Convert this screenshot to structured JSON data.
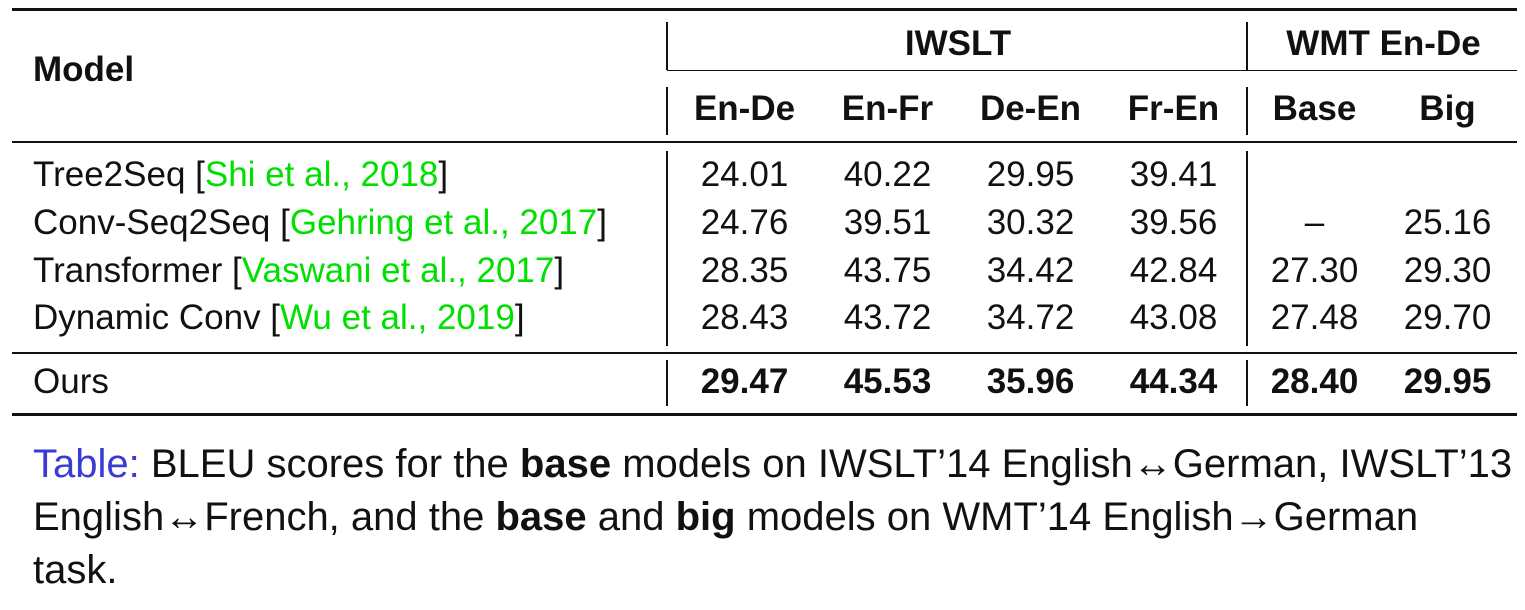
{
  "table": {
    "model_header": "Model",
    "groups": [
      {
        "label": "IWSLT"
      },
      {
        "label": "WMT En-De"
      }
    ],
    "columns": [
      "En-De",
      "En-Fr",
      "De-En",
      "Fr-En",
      "Base",
      "Big"
    ],
    "rows": [
      {
        "name": "Tree2Seq",
        "cite": "Shi et al., 2018",
        "values": [
          "24.01",
          "40.22",
          "29.95",
          "39.41",
          "",
          ""
        ]
      },
      {
        "name": "Conv-Seq2Seq",
        "cite": "Gehring et al., 2017",
        "values": [
          "24.76",
          "39.51",
          "30.32",
          "39.56",
          "–",
          "25.16"
        ]
      },
      {
        "name": "Transformer",
        "cite": "Vaswani et al., 2017",
        "values": [
          "28.35",
          "43.75",
          "34.42",
          "42.84",
          "27.30",
          "29.30"
        ]
      },
      {
        "name": "Dynamic Conv",
        "cite": "Wu et al., 2019",
        "values": [
          "28.43",
          "43.72",
          "34.72",
          "43.08",
          "27.48",
          "29.70"
        ]
      }
    ],
    "ours": {
      "name": "Ours",
      "values": [
        "29.47",
        "45.53",
        "35.96",
        "44.34",
        "28.40",
        "29.95"
      ]
    }
  },
  "caption": {
    "label": "Table:",
    "t1": " BLEU scores for the ",
    "b1": "base",
    "t2": " models on IWSLT’14 English↔German, IWSLT’13 English↔French, and the ",
    "b2": "base",
    "t3": " and ",
    "b3": "big",
    "t4": " models on WMT’14 English→German task."
  },
  "colors": {
    "citation": "#00e000",
    "caption_label": "#3a3ad6",
    "text": "#111111"
  }
}
